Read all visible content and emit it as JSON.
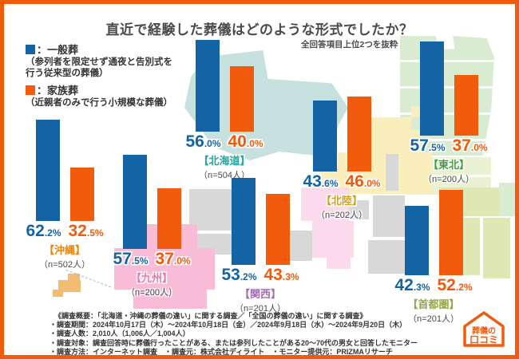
{
  "header": {
    "title": "直近で経験した葬儀はどのような形式でしたか？",
    "subtitle": "全回答項目上位2つを抜粋"
  },
  "legend": {
    "general_label": "：一般葬",
    "general_desc1": "（参列者を限定せず通夜と告別式を",
    "general_desc2": "行う従来型の葬儀）",
    "family_label": "：家族葬",
    "family_desc": "（近親者のみで行う小規模な葬儀）"
  },
  "colors": {
    "bar_blue": "#1463a5",
    "bar_orange": "#f25a0c",
    "frame_orange": "#f25a0c"
  },
  "regions": [
    {
      "key": "okinawa",
      "name": "【沖縄】",
      "n": "（n=502人）",
      "label_color": "#f08300",
      "blue_val": 62.2,
      "orange_val": 32.5,
      "pct": {
        "blue_int": "62",
        "blue_dec": ".2%",
        "orange_int": "32",
        "orange_dec": ".5%"
      }
    },
    {
      "key": "kyushu",
      "name": "【九州】",
      "n": "（n=200人）",
      "label_color": "#f072a8",
      "blue_val": 57.5,
      "orange_val": 37.0,
      "pct": {
        "blue_int": "57",
        "blue_dec": ".5%",
        "orange_int": "37",
        "orange_dec": ".0%"
      }
    },
    {
      "key": "hokkaido",
      "name": "【北海道】",
      "n": "（n=504人）",
      "label_color": "#2aa49d",
      "blue_val": 56.0,
      "orange_val": 40.0,
      "pct": {
        "blue_int": "56",
        "blue_dec": ".0%",
        "orange_int": "40",
        "orange_dec": ".0%"
      }
    },
    {
      "key": "kansai",
      "name": "【関西】",
      "n": "（n=201人）",
      "label_color": "#a06cb0",
      "blue_val": 53.2,
      "orange_val": 43.3,
      "pct": {
        "blue_int": "53",
        "blue_dec": ".2%",
        "orange_int": "43",
        "orange_dec": ".3%"
      }
    },
    {
      "key": "hokuriku",
      "name": "【北陸】",
      "n": "（n=202人）",
      "label_color": "#d1a31b",
      "blue_val": 43.6,
      "orange_val": 46.0,
      "pct": {
        "blue_int": "43",
        "blue_dec": ".6%",
        "orange_int": "46",
        "orange_dec": ".0%"
      }
    },
    {
      "key": "tohoku",
      "name": "【東北】",
      "n": "（n=200人）",
      "label_color": "#3ba43b",
      "blue_val": 57.5,
      "orange_val": 37.0,
      "pct": {
        "blue_int": "57",
        "blue_dec": ".5%",
        "orange_int": "37",
        "orange_dec": ".0%"
      }
    },
    {
      "key": "shutoken",
      "name": "【首都圏】",
      "n": "（n=201人）",
      "label_color": "#96a545",
      "blue_val": 42.3,
      "orange_val": 52.2,
      "pct": {
        "blue_int": "42",
        "blue_dec": ".3%",
        "orange_int": "52",
        "orange_dec": ".2%"
      }
    }
  ],
  "chart_data": {
    "type": "bar",
    "title": "直近で経験した葬儀はどのような形式でしたか？",
    "subtitle": "全回答項目上位2つを抜粋",
    "categories": [
      "沖縄",
      "九州",
      "北海道",
      "関西",
      "北陸",
      "東北",
      "首都圏"
    ],
    "sample_sizes": [
      502,
      200,
      504,
      201,
      202,
      200,
      201
    ],
    "series": [
      {
        "name": "一般葬（参列者を限定せず通夜と告別式を行う従来型の葬儀）",
        "color": "#1463a5",
        "values": [
          62.2,
          57.5,
          56.0,
          53.2,
          43.6,
          57.5,
          42.3
        ]
      },
      {
        "name": "家族葬（近親者のみで行う小規模な葬儀）",
        "color": "#f25a0c",
        "values": [
          32.5,
          37.0,
          40.0,
          43.3,
          46.0,
          37.0,
          52.2
        ]
      }
    ],
    "unit": "%",
    "ylim": [
      0,
      65
    ],
    "legend_position": "top-left",
    "grid": false
  },
  "footer": {
    "lines": [
      "《調査概要：「北海道・沖縄の葬儀の違い」に関する調査／「全国の葬儀の違い」に関する調査》",
      "・調査期間：2024年10月17日（木）〜2024年10月18日（金）／2024年9月18日（水）〜2024年9月20日（木）",
      "・調査人数：2,010人（1,006人／1,004人）",
      "・調査対象：調査回答時に葬儀行ったことがある、または参列したことがある20〜70代の男女と回答したモニター",
      "・調査方法：インターネット調査　・調査元：株式会社ディライト　・モニター提供元：PRIZMAリサーチ"
    ]
  },
  "logo": {
    "line1": "葬儀の",
    "line2": "口コミ"
  }
}
